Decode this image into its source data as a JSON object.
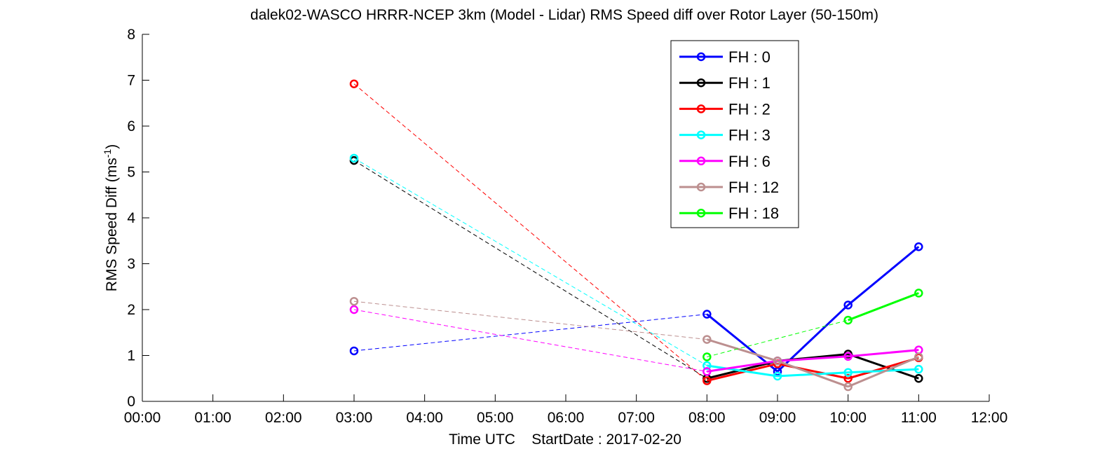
{
  "chart_data": {
    "type": "line",
    "title": "dalek02-WASCO HRRR-NCEP 3km (Model - Lidar) RMS Speed diff over Rotor Layer (50-150m)",
    "xlabel": "Time UTC    StartDate : 2017-02-20",
    "ylabel": "RMS Speed Diff (ms",
    "ylabel_sup": "-1",
    "ylabel_close": ")",
    "x_ticks": [
      "00:00",
      "01:00",
      "02:00",
      "03:00",
      "04:00",
      "05:00",
      "06:00",
      "07:00",
      "08:00",
      "09:00",
      "10:00",
      "11:00",
      "12:00"
    ],
    "y_ticks": [
      "0",
      "1",
      "2",
      "3",
      "4",
      "5",
      "6",
      "7",
      "8"
    ],
    "xlim": [
      0,
      12
    ],
    "ylim": [
      0,
      8
    ],
    "grid": false,
    "legend_position": "top-right",
    "series": [
      {
        "name": "FH : 0",
        "color": "#0000ff",
        "x": [
          3,
          8,
          9,
          10,
          11
        ],
        "values": [
          1.1,
          1.9,
          0.65,
          2.1,
          3.37
        ]
      },
      {
        "name": "FH : 1",
        "color": "#000000",
        "x": [
          3,
          8,
          9,
          10,
          11
        ],
        "values": [
          5.25,
          0.5,
          0.88,
          1.03,
          0.5
        ]
      },
      {
        "name": "FH : 2",
        "color": "#ff0000",
        "x": [
          3,
          8,
          9,
          10,
          11
        ],
        "values": [
          6.92,
          0.45,
          0.82,
          0.5,
          0.95
        ]
      },
      {
        "name": "FH : 3",
        "color": "#00ffff",
        "x": [
          3,
          8,
          9,
          10,
          11
        ],
        "values": [
          5.3,
          0.78,
          0.55,
          0.63,
          0.7
        ]
      },
      {
        "name": "FH : 6",
        "color": "#ff00ff",
        "x": [
          3,
          8,
          9,
          10,
          11
        ],
        "values": [
          2.0,
          0.65,
          0.88,
          0.98,
          1.12
        ]
      },
      {
        "name": "FH : 12",
        "color": "#bc8f8f",
        "x": [
          3,
          8,
          9,
          10,
          11
        ],
        "values": [
          2.18,
          1.35,
          0.88,
          0.32,
          0.97
        ]
      },
      {
        "name": "FH : 18",
        "color": "#00ff00",
        "x": [
          8,
          10,
          11
        ],
        "values": [
          0.97,
          1.77,
          2.36
        ]
      }
    ],
    "gap_segments_dashed": true
  }
}
